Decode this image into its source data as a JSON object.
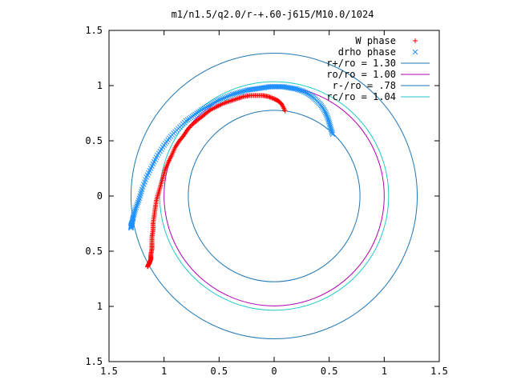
{
  "chart_data": {
    "type": "scatter",
    "title": "m1/n1.5/q2.0/r-+.60-j615/M10.0/1024",
    "xlabel": "",
    "ylabel": "",
    "xlim": [
      -1.5,
      1.5
    ],
    "ylim": [
      -1.5,
      1.5
    ],
    "x_ticks": [
      -1.5,
      -1,
      -0.5,
      0,
      0.5,
      1,
      1.5
    ],
    "x_tick_labels": [
      "1.5",
      "1",
      "0.5",
      "0",
      "0.5",
      "1",
      "1.5"
    ],
    "y_ticks": [
      1.5,
      1,
      0.5,
      0,
      -0.5,
      -1,
      -1.5
    ],
    "y_tick_labels": [
      "1.5",
      "1",
      "0.5",
      "0",
      "0.5",
      "1",
      "1.5"
    ],
    "grid": false,
    "legend_position": "top-right",
    "series": [
      {
        "name": "W phase",
        "kind": "points",
        "marker": "plus",
        "color": "#ff0000",
        "x": [
          0.1,
          0.07,
          0.04,
          0.0,
          -0.05,
          -0.1,
          -0.16,
          -0.22,
          -0.28,
          -0.34,
          -0.4,
          -0.46,
          -0.52,
          -0.58,
          -0.63,
          -0.68,
          -0.73,
          -0.78,
          -0.82,
          -0.86,
          -0.9,
          -0.93,
          -0.96,
          -0.99,
          -1.01,
          -1.03,
          -1.05,
          -1.07,
          -1.08,
          -1.09,
          -1.1,
          -1.1,
          -1.11,
          -1.11,
          -1.11,
          -1.12,
          -1.12,
          -1.13,
          -1.14,
          -1.15
        ],
        "y": [
          0.77,
          0.83,
          0.86,
          0.88,
          0.9,
          0.91,
          0.91,
          0.91,
          0.9,
          0.88,
          0.86,
          0.84,
          0.81,
          0.78,
          0.74,
          0.7,
          0.66,
          0.61,
          0.55,
          0.5,
          0.44,
          0.37,
          0.31,
          0.24,
          0.17,
          0.1,
          0.03,
          -0.04,
          -0.11,
          -0.18,
          -0.25,
          -0.31,
          -0.37,
          -0.43,
          -0.48,
          -0.53,
          -0.57,
          -0.6,
          -0.62,
          -0.64
        ]
      },
      {
        "name": "drho phase",
        "kind": "points",
        "marker": "cross",
        "color": "#1e90ff",
        "x": [
          0.53,
          0.51,
          0.49,
          0.46,
          0.42,
          0.37,
          0.32,
          0.26,
          0.2,
          0.14,
          0.08,
          0.02,
          -0.04,
          -0.1,
          -0.17,
          -0.24,
          -0.31,
          -0.38,
          -0.45,
          -0.52,
          -0.59,
          -0.66,
          -0.73,
          -0.8,
          -0.87,
          -0.94,
          -1.0,
          -1.06,
          -1.11,
          -1.16,
          -1.2,
          -1.23,
          -1.26,
          -1.28,
          -1.29,
          -1.3,
          -1.3
        ],
        "y": [
          0.56,
          0.63,
          0.7,
          0.77,
          0.83,
          0.88,
          0.92,
          0.95,
          0.97,
          0.98,
          0.99,
          0.99,
          0.99,
          0.98,
          0.97,
          0.96,
          0.94,
          0.92,
          0.89,
          0.86,
          0.82,
          0.78,
          0.73,
          0.68,
          0.61,
          0.54,
          0.46,
          0.37,
          0.27,
          0.17,
          0.06,
          -0.04,
          -0.12,
          -0.19,
          -0.24,
          -0.27,
          -0.29
        ]
      },
      {
        "name": "r+/ro = 1.30",
        "kind": "circle",
        "radius": 1.3,
        "color": "#1f77b4"
      },
      {
        "name": "ro/ro = 1.00",
        "kind": "circle",
        "radius": 1.0,
        "color": "#b000b0"
      },
      {
        "name": "r-/ro = .78",
        "kind": "circle",
        "radius": 0.78,
        "color": "#1f77b4"
      },
      {
        "name": "rc/ro = 1.04",
        "kind": "circle",
        "radius": 1.04,
        "color": "#20c8c8"
      }
    ]
  }
}
